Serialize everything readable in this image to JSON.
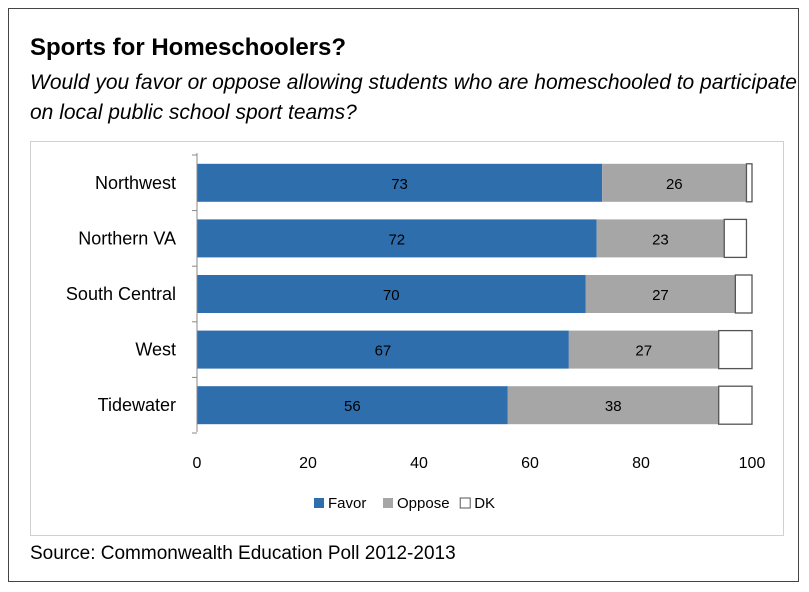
{
  "title": "Sports for Homeschoolers?",
  "subtitle": "Would you favor or oppose allowing students who are homeschooled to participate on local public school sport teams?",
  "source": "Source: Commonwealth Education Poll 2012-2013",
  "colors": {
    "favor": "#2e6ead",
    "oppose": "#a6a6a6",
    "dk": "#ffffff"
  },
  "chart_data": {
    "type": "bar",
    "orientation": "horizontal",
    "stacked": true,
    "categories": [
      "Northwest",
      "Northern VA",
      "South Central",
      "West",
      "Tidewater"
    ],
    "series": [
      {
        "name": "Favor",
        "values": [
          73,
          72,
          70,
          67,
          56
        ]
      },
      {
        "name": "Oppose",
        "values": [
          26,
          23,
          27,
          27,
          38
        ]
      },
      {
        "name": "DK",
        "values": [
          1,
          4,
          3,
          6,
          6
        ]
      }
    ],
    "value_labels": {
      "Favor": [
        "73",
        "72",
        "70",
        "67",
        "56"
      ],
      "Oppose": [
        "26",
        "23",
        "27",
        "27",
        "38"
      ]
    },
    "xlim": [
      0,
      100
    ],
    "xticks": [
      0,
      20,
      40,
      60,
      80,
      100
    ],
    "legend_position": "bottom",
    "grid": false
  }
}
